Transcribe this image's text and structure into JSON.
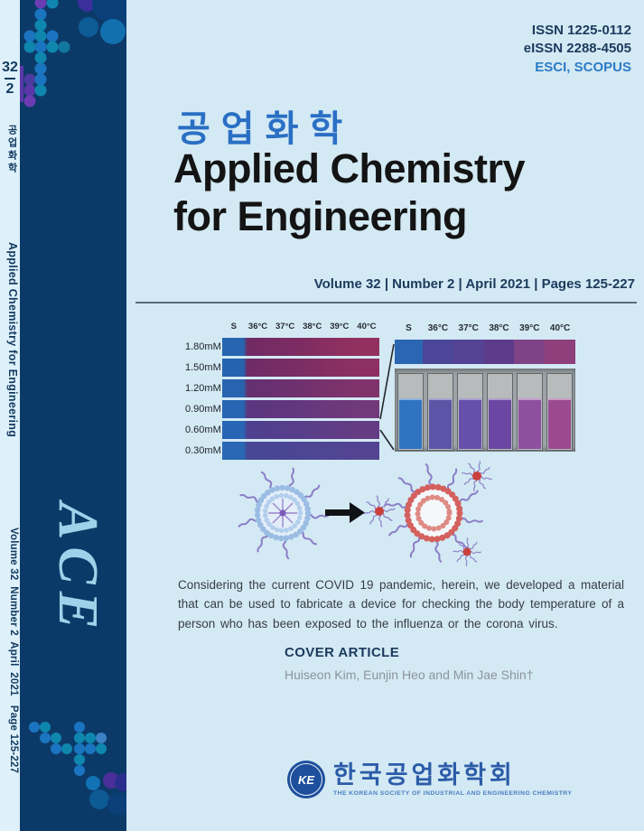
{
  "masthead": {
    "issn": "ISSN 1225-0112",
    "eissn": "eISSN 2288-4505",
    "indexing": "ESCI, SCOPUS"
  },
  "title": {
    "korean": "공업화학",
    "english_line1": "Applied Chemistry",
    "english_line2": "for Engineering",
    "volume_line": "Volume 32 | Number 2 | April 2021 | Pages 125-227"
  },
  "spine": {
    "volume": "32",
    "issue": "2",
    "korean_title": "공업화학",
    "english_title": "Applied Chemistry for Engineering",
    "volume_info": "Volume 32  Number 2  April  2021   Page 125-227",
    "acronym": "ACE"
  },
  "chart_data": {
    "type": "heatmap",
    "columns": [
      "S",
      "36°C",
      "37°C",
      "38°C",
      "39°C",
      "40°C"
    ],
    "rows": [
      "1.80mM",
      "1.50mM",
      "1.20mM",
      "0.90mM",
      "0.60mM",
      "0.30mM"
    ],
    "cell_colors": [
      [
        "#2765b0",
        "#702a64",
        "#772b63",
        "#7d2c62",
        "#8a2f60",
        "#92315f"
      ],
      [
        "#2663ae",
        "#6f2b66",
        "#752c65",
        "#7b2d64",
        "#862f62",
        "#8d3061"
      ],
      [
        "#2763af",
        "#653070",
        "#6a306f",
        "#70316e",
        "#7a326c",
        "#80336a"
      ],
      [
        "#2865b2",
        "#5b3680",
        "#5f367f",
        "#64377e",
        "#6c387b",
        "#713979"
      ],
      [
        "#2766b4",
        "#4e3f8e",
        "#533f8c",
        "#573e8a",
        "#5f3d86",
        "#643c84"
      ],
      [
        "#2a67b5",
        "#474795",
        "#494795",
        "#4c4694",
        "#504592",
        "#534491"
      ]
    ],
    "enlarged": {
      "columns": [
        "S",
        "36°C",
        "37°C",
        "38°C",
        "39°C",
        "40°C"
      ],
      "bar_colors": [
        "#2b66b3",
        "#4b4697",
        "#544394",
        "#5d3a8a",
        "#7f4287",
        "#8f3f7b"
      ],
      "cuvette_colors": [
        "#2f73c2",
        "#5b55a8",
        "#6550ab",
        "#6b46a2",
        "#8f4f9f",
        "#9c4a90"
      ]
    }
  },
  "abstract": "Considering the current COVID 19 pandemic, herein, we developed a material that can be used to fabricate a device for checking the body temperature of a person who has been exposed to the influenza or the corona virus.",
  "cover_article": {
    "heading": "COVER ARTICLE",
    "authors": "Huiseon Kim, Eunjin Heo and Min Jae Shin†"
  },
  "society": {
    "badge": "KE",
    "korean_name": "한국공업화학회",
    "english_name": "THE KOREAN SOCIETY OF INDUSTRIAL AND ENGINEERING CHEMISTRY"
  }
}
